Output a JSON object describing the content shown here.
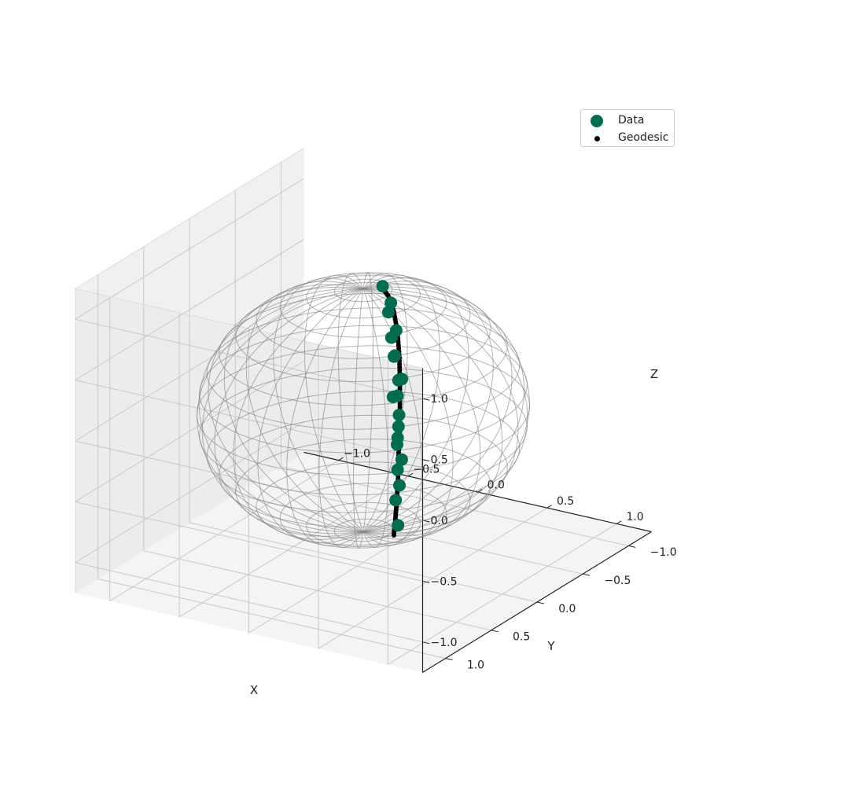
{
  "colors": {
    "data": "#006d4f",
    "geodesic": "#000000",
    "sphere": "#808080",
    "pane": "#f2f2f2",
    "grid": "#c8c8c8"
  },
  "legend": {
    "placement": "top-right",
    "entries": [
      {
        "label": "Data",
        "color": "#006d4f",
        "marker": "large-circle"
      },
      {
        "label": "Geodesic",
        "color": "#000000",
        "marker": "small-circle"
      }
    ]
  },
  "chart_data": {
    "type": "scatter",
    "projection": "3d",
    "title": "",
    "xlabel": "X",
    "ylabel": "Y",
    "zlabel": "Z",
    "xlim": [
      -1.25,
      1.25
    ],
    "ylim": [
      -1.25,
      1.25
    ],
    "zlim": [
      -1.25,
      1.25
    ],
    "xticks": [
      "−1.0",
      "−0.5",
      "0.0",
      "0.5",
      "1.0"
    ],
    "yticks": [
      "−1.0",
      "−0.5",
      "0.0",
      "0.5",
      "1.0"
    ],
    "zticks": [
      "−1.0",
      "−0.5",
      "0.0",
      "0.5",
      "1.0"
    ],
    "grid": true,
    "sphere": {
      "center": [
        0,
        0,
        0
      ],
      "radius": 1,
      "style": "wireframe"
    },
    "series": [
      {
        "name": "Data",
        "kind": "scatter",
        "points": [
          [
            0.06,
            -0.12,
            0.98
          ],
          [
            0.26,
            0.12,
            0.93
          ],
          [
            0.1,
            -0.15,
            0.84
          ],
          [
            0.27,
            0.05,
            0.75
          ],
          [
            0.15,
            -0.08,
            0.6
          ],
          [
            0.28,
            0.08,
            0.56
          ],
          [
            0.2,
            -0.03,
            0.48
          ],
          [
            0.33,
            0.08,
            0.38
          ],
          [
            0.24,
            -0.02,
            0.3
          ],
          [
            0.26,
            0.07,
            0.21
          ],
          [
            0.18,
            -0.1,
            0.12
          ],
          [
            0.29,
            0.05,
            0.06
          ],
          [
            0.24,
            -0.02,
            -0.08
          ],
          [
            0.28,
            0.05,
            -0.13
          ],
          [
            0.23,
            -0.02,
            -0.23
          ],
          [
            0.29,
            0.02,
            -0.32
          ],
          [
            0.22,
            -0.04,
            -0.45
          ],
          [
            0.28,
            0.03,
            -0.53
          ],
          [
            0.2,
            -0.05,
            -0.71
          ],
          [
            0.25,
            0.0,
            -0.88
          ]
        ]
      },
      {
        "name": "Geodesic",
        "kind": "line-of-points",
        "points": [
          [
            0.06,
            -0.1,
            0.99
          ],
          [
            0.14,
            -0.06,
            0.95
          ],
          [
            0.2,
            -0.03,
            0.85
          ],
          [
            0.24,
            -0.01,
            0.7
          ],
          [
            0.26,
            0.0,
            0.5
          ],
          [
            0.27,
            0.01,
            0.3
          ],
          [
            0.27,
            0.01,
            0.1
          ],
          [
            0.27,
            0.01,
            -0.1
          ],
          [
            0.26,
            0.01,
            -0.3
          ],
          [
            0.25,
            0.0,
            -0.5
          ],
          [
            0.24,
            0.0,
            -0.7
          ],
          [
            0.23,
            0.0,
            -0.85
          ],
          [
            0.22,
            0.0,
            -0.97
          ]
        ]
      }
    ]
  }
}
